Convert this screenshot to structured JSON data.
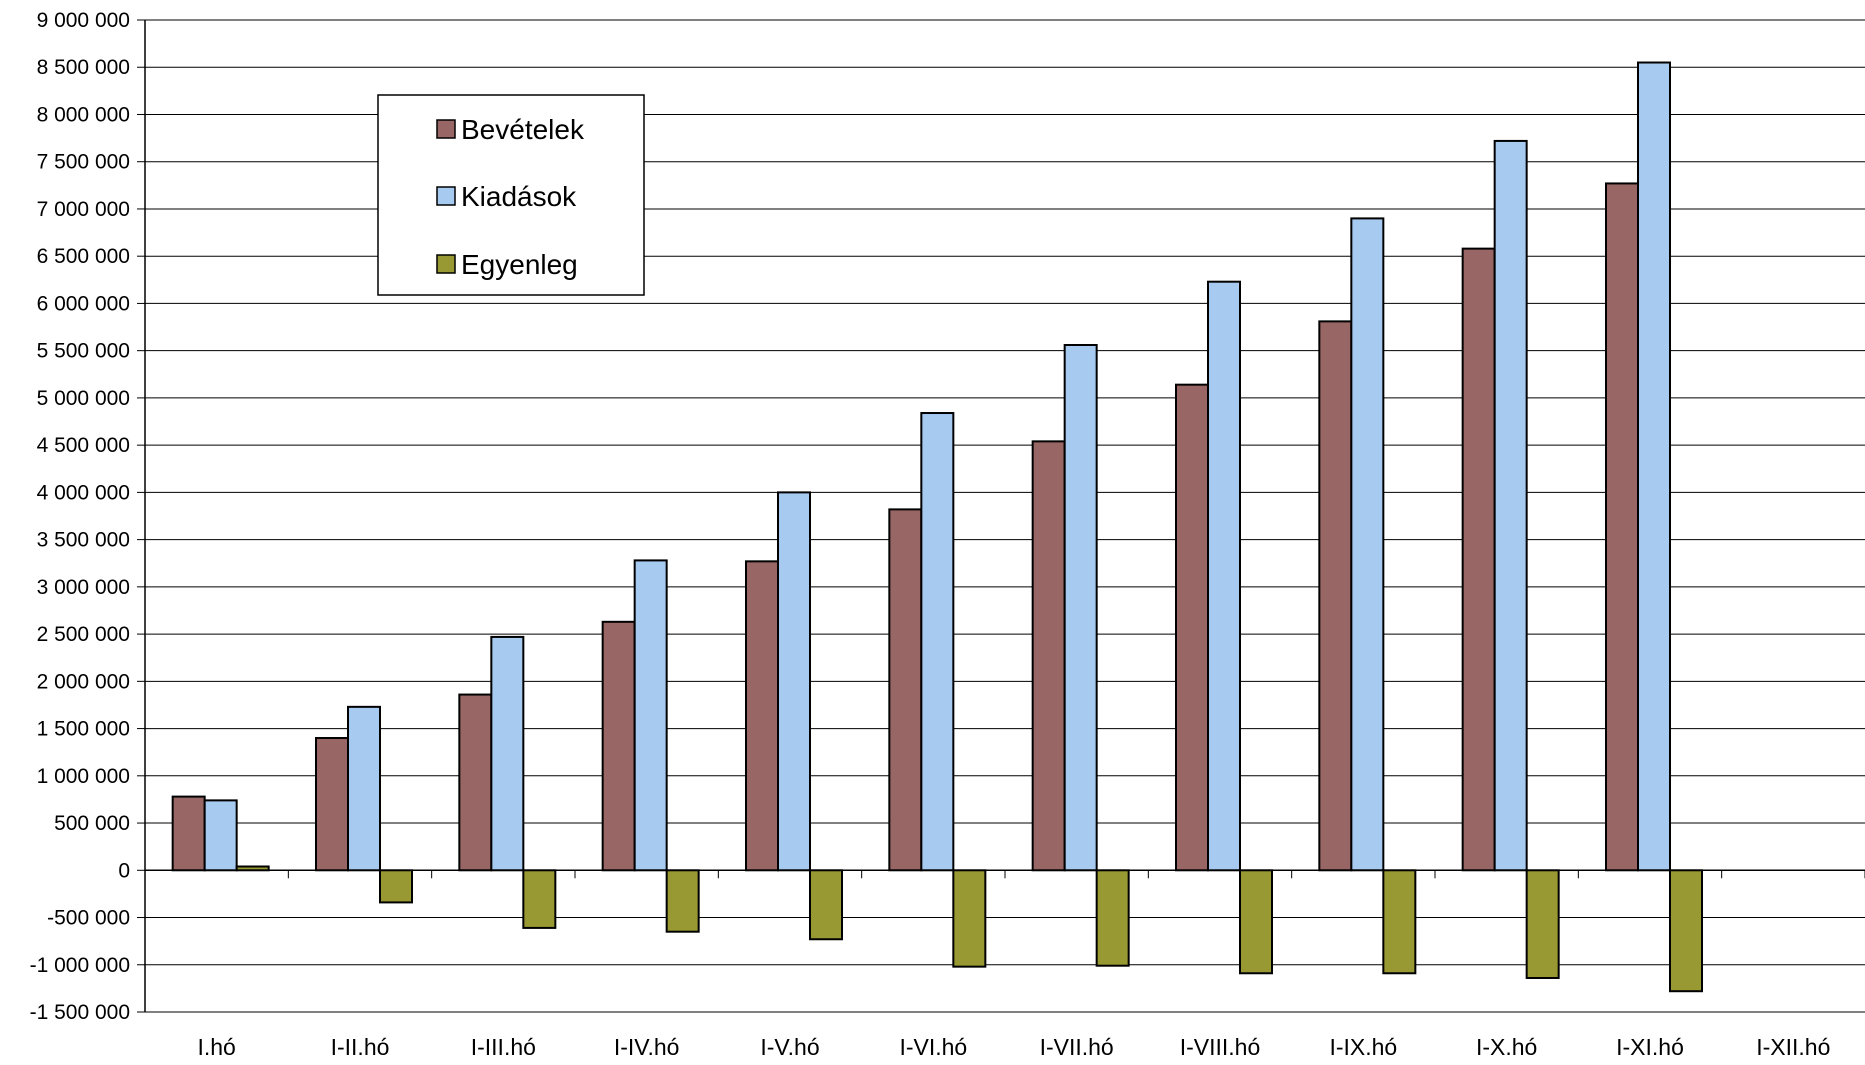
{
  "chart_data": {
    "type": "bar",
    "categories": [
      "I.hó",
      "I-II.hó",
      "I-III.hó",
      "I-IV.hó",
      "I-V.hó",
      "I-VI.hó",
      "I-VII.hó",
      "I-VIII.hó",
      "I-IX.hó",
      "I-X.hó",
      "I-XI.hó",
      "I-XII.hó"
    ],
    "series": [
      {
        "name": "Bevételek",
        "color": "#996666",
        "values": [
          780000,
          1400000,
          1860000,
          2630000,
          3270000,
          3820000,
          4540000,
          5140000,
          5810000,
          6580000,
          7270000,
          null
        ]
      },
      {
        "name": "Kiadások",
        "color": "#a6caf0",
        "values": [
          740000,
          1730000,
          2470000,
          3280000,
          4000000,
          4840000,
          5560000,
          6230000,
          6900000,
          7720000,
          8550000,
          null
        ]
      },
      {
        "name": "Egyenleg",
        "color": "#999933",
        "values": [
          40000,
          -340000,
          -610000,
          -650000,
          -730000,
          -1020000,
          -1010000,
          -1090000,
          -1090000,
          -1140000,
          -1280000,
          null
        ]
      }
    ],
    "ylim": [
      -1500000,
      9000000
    ],
    "yticks": [
      9000000,
      8500000,
      8000000,
      7500000,
      7000000,
      6500000,
      6000000,
      5500000,
      5000000,
      4500000,
      4000000,
      3500000,
      3000000,
      2500000,
      2000000,
      1500000,
      1000000,
      500000,
      0,
      -500000,
      -1000000,
      -1500000
    ],
    "ytick_labels": [
      "9 000 000",
      "8 500 000",
      "8 000 000",
      "7 500 000",
      "7 000 000",
      "6 500 000",
      "6 000 000",
      "5 500 000",
      "5 000 000",
      "4 500 000",
      "4 000 000",
      "3 500 000",
      "3 000 000",
      "2 500 000",
      "2 000 000",
      "1 500 000",
      "1 000 000",
      "500 000",
      "0",
      "-500 000",
      "-1 000 000",
      "-1 500 000"
    ],
    "grid": true,
    "legend_position": "top-left",
    "title": "",
    "xlabel": "",
    "ylabel": ""
  }
}
